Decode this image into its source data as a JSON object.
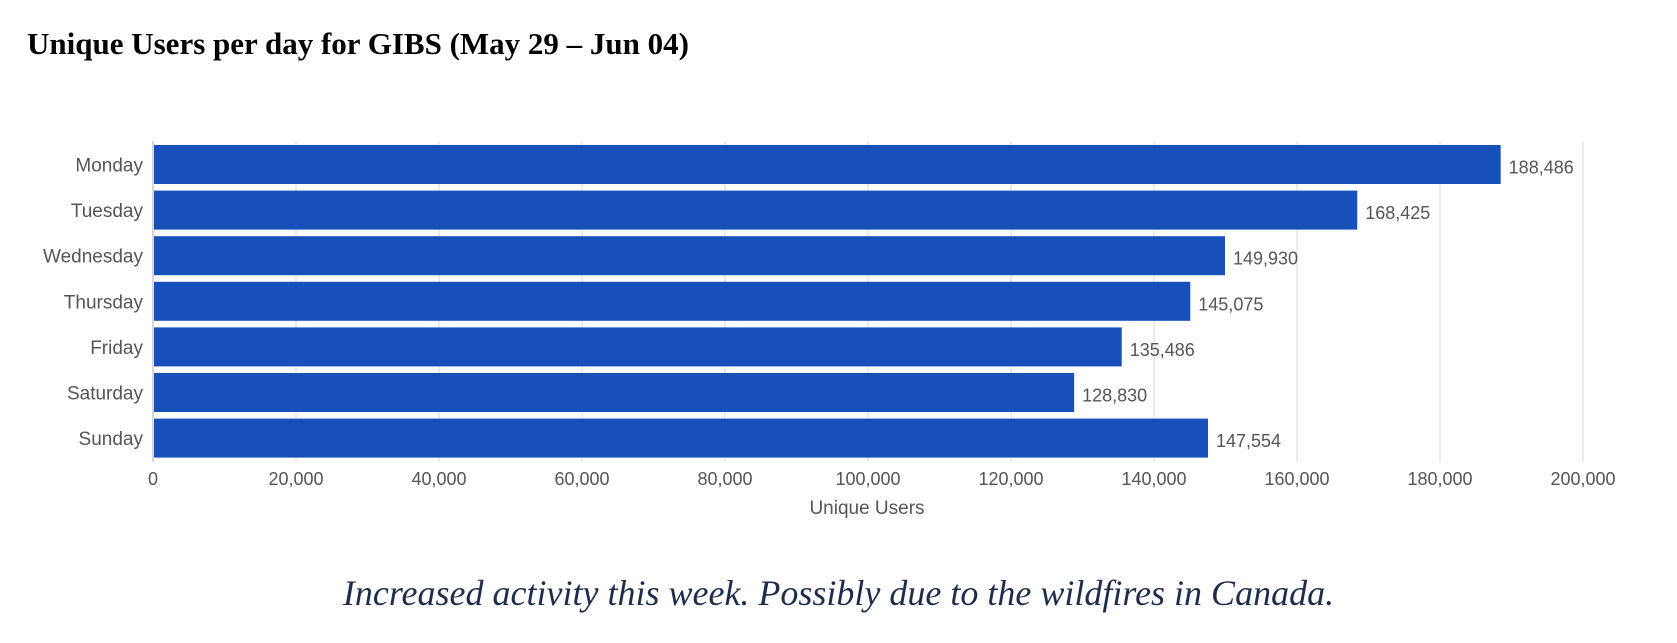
{
  "title": "Unique Users per day for GIBS (May 29 – Jun 04)",
  "note": "Increased activity this week.  Possibly due to the wildfires in Canada.",
  "chart_data": {
    "type": "bar",
    "orientation": "horizontal",
    "categories": [
      "Monday",
      "Tuesday",
      "Wednesday",
      "Thursday",
      "Friday",
      "Saturday",
      "Sunday"
    ],
    "values": [
      188486,
      168425,
      149930,
      145075,
      135486,
      128830,
      147554
    ],
    "data_labels": [
      "188,486",
      "168,425",
      "149,930",
      "145,075",
      "135,486",
      "128,830",
      "147,554"
    ],
    "xlabel": "Unique Users",
    "ylabel": "",
    "xlim": [
      0,
      200000
    ],
    "xticks": [
      0,
      20000,
      40000,
      60000,
      80000,
      100000,
      120000,
      140000,
      160000,
      180000,
      200000
    ],
    "xtick_labels": [
      "0",
      "20,000",
      "40,000",
      "60,000",
      "80,000",
      "100,000",
      "120,000",
      "140,000",
      "160,000",
      "180,000",
      "200,000"
    ],
    "grid": "vertical",
    "bar_color": "#1650b8"
  }
}
